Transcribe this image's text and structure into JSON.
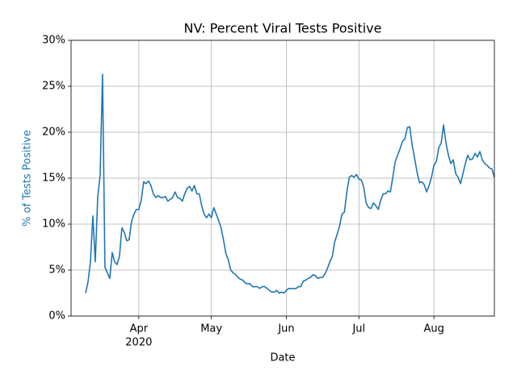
{
  "chart_data": {
    "type": "line",
    "title": "NV: Percent Viral Tests Positive",
    "x_label": "Date",
    "y_label": "% of Tests Positive",
    "x_year_label": "2020",
    "color": "#1f77b4",
    "grid": true,
    "xlim": [
      64,
      239
    ],
    "xticks": [
      {
        "value": 92,
        "label": "Apr"
      },
      {
        "value": 122,
        "label": "May"
      },
      {
        "value": 153,
        "label": "Jun"
      },
      {
        "value": 183,
        "label": "Jul"
      },
      {
        "value": 214,
        "label": "Aug"
      }
    ],
    "ylim": [
      0,
      30
    ],
    "yticks": [
      {
        "value": 0,
        "label": "0%"
      },
      {
        "value": 5,
        "label": "5%"
      },
      {
        "value": 10,
        "label": "10%"
      },
      {
        "value": 15,
        "label": "15%"
      },
      {
        "value": 20,
        "label": "20%"
      },
      {
        "value": 25,
        "label": "25%"
      },
      {
        "value": 30,
        "label": "30%"
      }
    ],
    "x": [
      70,
      71,
      72,
      73,
      74,
      75,
      76,
      77,
      78,
      79,
      80,
      81,
      82,
      83,
      84,
      85,
      86,
      87,
      88,
      89,
      90,
      91,
      92,
      93,
      94,
      95,
      96,
      97,
      98,
      99,
      100,
      101,
      102,
      103,
      104,
      105,
      106,
      107,
      108,
      109,
      110,
      111,
      112,
      113,
      114,
      115,
      116,
      117,
      118,
      119,
      120,
      121,
      122,
      123,
      124,
      125,
      126,
      127,
      128,
      129,
      130,
      131,
      132,
      133,
      134,
      135,
      136,
      137,
      138,
      139,
      140,
      141,
      142,
      143,
      144,
      145,
      146,
      147,
      148,
      149,
      150,
      151,
      152,
      153,
      154,
      155,
      156,
      157,
      158,
      159,
      160,
      161,
      162,
      163,
      164,
      165,
      166,
      167,
      168,
      169,
      170,
      171,
      172,
      173,
      174,
      175,
      176,
      177,
      178,
      179,
      180,
      181,
      182,
      183,
      184,
      185,
      186,
      187,
      188,
      189,
      190,
      191,
      192,
      193,
      194,
      195,
      196,
      197,
      198,
      199,
      200,
      201,
      202,
      203,
      204,
      205,
      206,
      207,
      208,
      209,
      210,
      211,
      212,
      213,
      214,
      215,
      216,
      217,
      218,
      219,
      220,
      221,
      222,
      223,
      224,
      225,
      226,
      227,
      228,
      229,
      230,
      231,
      232,
      233,
      234,
      235,
      236,
      237,
      238,
      239
    ],
    "values": [
      2.5,
      3.7,
      5.9,
      10.9,
      5.9,
      12.9,
      15.3,
      26.3,
      5.3,
      4.7,
      4.1,
      6.9,
      5.9,
      5.6,
      6.5,
      9.6,
      9.1,
      8.2,
      8.3,
      10.3,
      11.1,
      11.6,
      11.6,
      12.6,
      14.6,
      14.4,
      14.7,
      14.2,
      13.3,
      12.9,
      13.1,
      12.9,
      12.9,
      13.0,
      12.5,
      12.7,
      12.9,
      13.5,
      12.9,
      12.8,
      12.5,
      13.3,
      13.9,
      14.1,
      13.6,
      14.2,
      13.3,
      13.3,
      12.0,
      11.1,
      10.7,
      11.1,
      10.7,
      11.8,
      11.1,
      10.4,
      9.6,
      8.3,
      6.8,
      6.1,
      5.0,
      4.7,
      4.5,
      4.2,
      4.0,
      3.9,
      3.6,
      3.5,
      3.5,
      3.2,
      3.2,
      3.2,
      3.0,
      3.2,
      3.2,
      3.0,
      2.8,
      2.6,
      2.6,
      2.8,
      2.5,
      2.6,
      2.5,
      2.8,
      3.0,
      3.0,
      3.0,
      3.0,
      3.2,
      3.2,
      3.8,
      3.9,
      4.1,
      4.2,
      4.5,
      4.4,
      4.1,
      4.2,
      4.2,
      4.6,
      5.2,
      5.9,
      6.5,
      8.1,
      8.9,
      9.8,
      11.1,
      11.3,
      13.5,
      15.1,
      15.3,
      15.1,
      15.4,
      14.9,
      14.8,
      14.0,
      12.3,
      11.8,
      11.7,
      12.3,
      12.0,
      11.6,
      12.6,
      13.3,
      13.3,
      13.6,
      13.5,
      15.1,
      16.8,
      17.5,
      18.2,
      19.0,
      19.3,
      20.5,
      20.6,
      18.6,
      17.2,
      15.7,
      14.5,
      14.6,
      14.3,
      13.5,
      14.2,
      15.1,
      16.4,
      16.8,
      18.3,
      18.8,
      20.8,
      18.8,
      17.5,
      16.6,
      17.0,
      15.5,
      15.1,
      14.4,
      15.5,
      16.6,
      17.5,
      17.0,
      17.1,
      17.7,
      17.3,
      17.9,
      17.0,
      16.6,
      16.4,
      16.1,
      16.0,
      15.1
    ]
  }
}
